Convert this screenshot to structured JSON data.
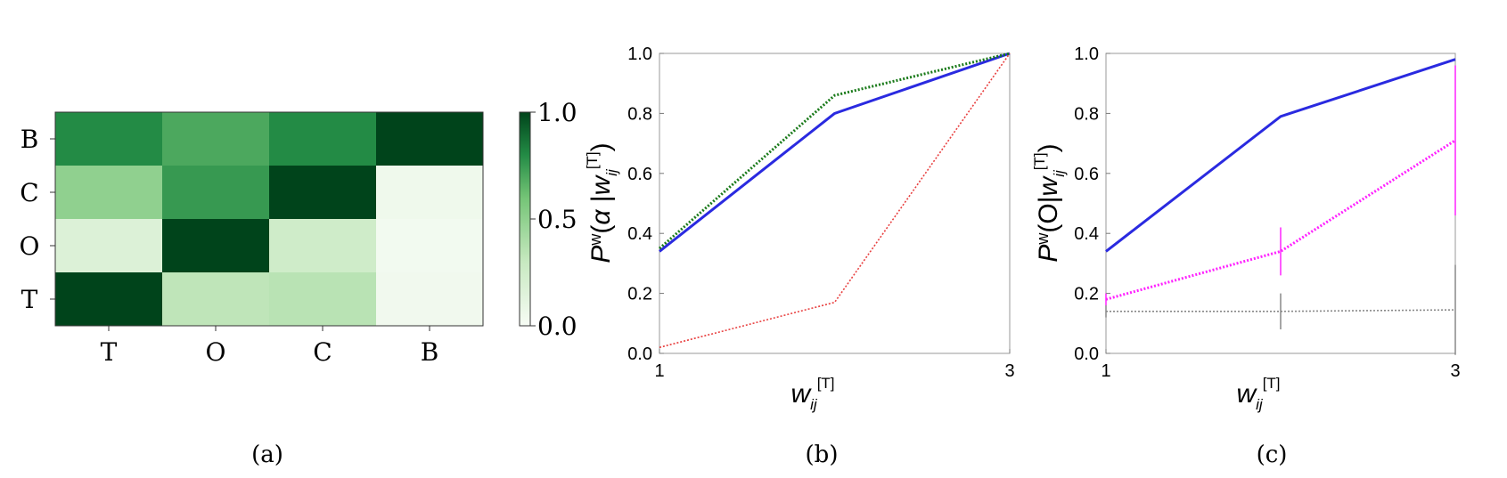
{
  "chart_data": [
    {
      "type": "heatmap",
      "caption": "(a)",
      "x_labels": [
        "T",
        "O",
        "C",
        "B"
      ],
      "y_labels": [
        "B",
        "C",
        "O",
        "T"
      ],
      "values": [
        [
          0.8,
          0.7,
          0.8,
          1.0
        ],
        [
          0.5,
          0.75,
          1.0,
          0.05
        ],
        [
          0.17,
          1.0,
          0.25,
          0.03
        ],
        [
          1.0,
          0.33,
          0.35,
          0.04
        ]
      ],
      "colorbar": {
        "min": 0.0,
        "max": 1.0,
        "ticks": [
          "1.0",
          "0.5",
          "0.0"
        ],
        "low_color": "#f7fcf5",
        "high_color": "#00441b"
      }
    },
    {
      "type": "line",
      "caption": "(b)",
      "x_ticks": [
        "1",
        "3"
      ],
      "y_ticks": [
        "0.0",
        "0.2",
        "0.4",
        "0.6",
        "0.8",
        "1.0"
      ],
      "xlim": [
        1,
        3
      ],
      "ylim": [
        0,
        1
      ],
      "series": [
        {
          "color": "#2a2ae0",
          "style": "solid",
          "x": [
            1,
            2,
            3
          ],
          "y": [
            0.34,
            0.8,
            1.0
          ]
        },
        {
          "color": "#1a7a1a",
          "style": "dotted",
          "x": [
            1,
            2,
            3
          ],
          "y": [
            0.35,
            0.86,
            1.0
          ]
        },
        {
          "color": "#e84040",
          "style": "dotted",
          "x": [
            1,
            2,
            3
          ],
          "y": [
            0.02,
            0.17,
            1.0
          ]
        }
      ]
    },
    {
      "type": "line",
      "caption": "(c)",
      "x_ticks": [
        "1",
        "3"
      ],
      "y_ticks": [
        "0.0",
        "0.2",
        "0.4",
        "0.6",
        "0.8",
        "1.0"
      ],
      "xlim": [
        1,
        3
      ],
      "ylim": [
        0,
        1
      ],
      "series": [
        {
          "color": "#2a2ae0",
          "style": "solid",
          "x": [
            1,
            2,
            3
          ],
          "y": [
            0.34,
            0.79,
            0.98
          ],
          "err": [
            0,
            0,
            0
          ]
        },
        {
          "color": "#ff22ff",
          "style": "dotted",
          "x": [
            1,
            2,
            3
          ],
          "y": [
            0.18,
            0.34,
            0.71
          ],
          "err": [
            0.02,
            0.08,
            0.25
          ]
        },
        {
          "color": "#888888",
          "style": "dotted",
          "x": [
            1,
            2,
            3
          ],
          "y": [
            0.14,
            0.14,
            0.145
          ],
          "err": [
            0.02,
            0.06,
            0.15
          ]
        }
      ]
    }
  ]
}
